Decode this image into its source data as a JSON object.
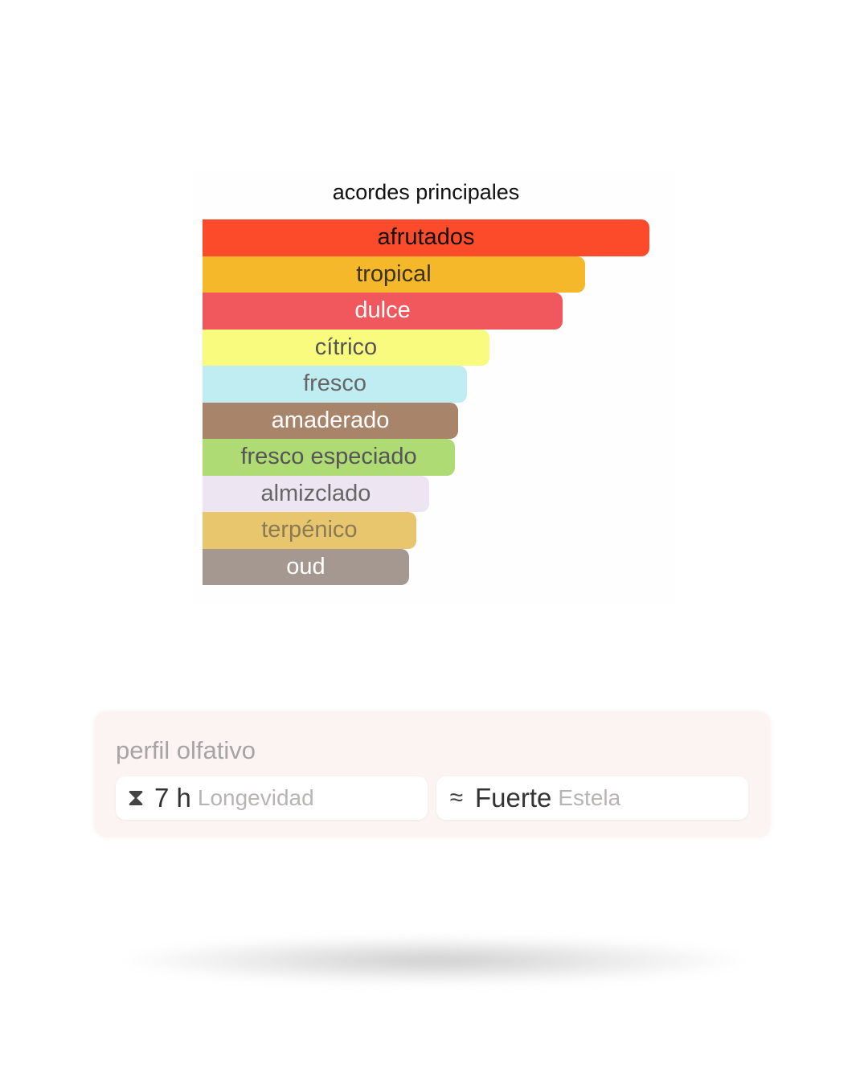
{
  "chart_data": {
    "type": "bar",
    "orientation": "horizontal",
    "title": "acordes principales",
    "categories": [
      "afrutados",
      "tropical",
      "dulce",
      "cítrico",
      "fresco",
      "amaderado",
      "fresco especiado",
      "almizclado",
      "terpénico",
      "oud"
    ],
    "values": [
      100,
      85.6,
      80.6,
      64.2,
      59.2,
      57.2,
      56.5,
      50.7,
      47.8,
      46.2
    ],
    "colors": [
      "#FC4B2A",
      "#F5B82A",
      "#F0585E",
      "#F9FB7E",
      "#BFEDF2",
      "#A8856A",
      "#AEDB73",
      "#EEE5F3",
      "#E8C66E",
      "#A49890"
    ],
    "text_colors": [
      "#111111",
      "#3a3320",
      "#ffffff",
      "#555555",
      "#666666",
      "#ffffff",
      "#555555",
      "#666666",
      "#8a7a55",
      "#ffffff"
    ],
    "grid": false,
    "legend": "none"
  },
  "profile": {
    "title": "perfil olfativo",
    "longevity": {
      "icon": "hourglass-icon",
      "value": "7 h",
      "label": "Longevidad"
    },
    "sillage": {
      "icon": "waves-icon",
      "value": "Fuerte",
      "label": "Estela"
    }
  }
}
